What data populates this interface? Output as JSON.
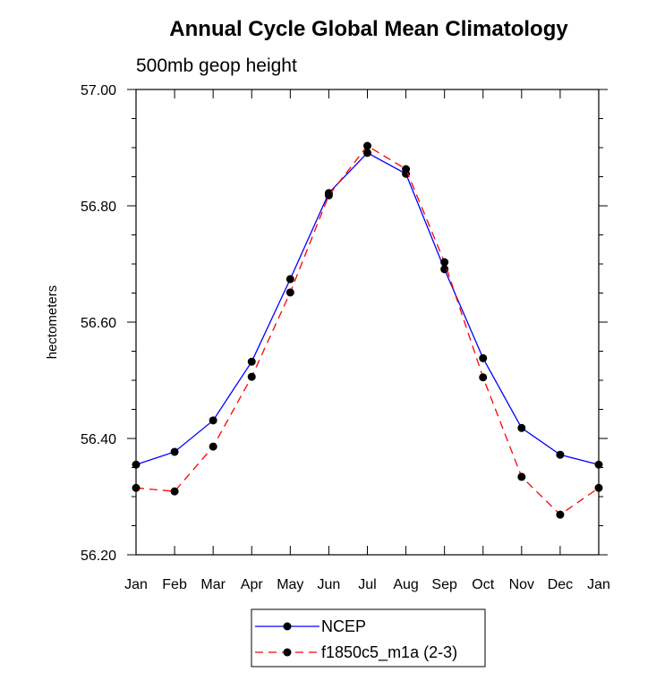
{
  "chart_data": {
    "type": "line",
    "title": "Annual Cycle Global Mean Climatology",
    "subtitle": "500mb geop height",
    "xlabel": "",
    "ylabel": "hectometers",
    "categories": [
      "Jan",
      "Feb",
      "Mar",
      "Apr",
      "May",
      "Jun",
      "Jul",
      "Aug",
      "Sep",
      "Oct",
      "Nov",
      "Dec",
      "Jan"
    ],
    "ylim": [
      56.2,
      57.0
    ],
    "yticks": [
      56.2,
      56.4,
      56.6,
      56.8,
      57.0
    ],
    "ytick_labels": [
      "56.20",
      "56.40",
      "56.60",
      "56.80",
      "57.00"
    ],
    "y_minor_step": 0.05,
    "grid": false,
    "legend_position": "bottom-center",
    "series": [
      {
        "name": "NCEP",
        "color": "#0000ff",
        "line_style": "solid",
        "marker": "filled-circle",
        "values": [
          56.355,
          56.377,
          56.431,
          56.532,
          56.674,
          56.822,
          56.891,
          56.855,
          56.691,
          56.538,
          56.418,
          56.372,
          56.355
        ]
      },
      {
        "name": "f1850c5_m1a (2-3)",
        "color": "#ff0000",
        "line_style": "dashed",
        "marker": "filled-circle",
        "values": [
          56.315,
          56.309,
          56.386,
          56.506,
          56.651,
          56.818,
          56.903,
          56.863,
          56.703,
          56.505,
          56.334,
          56.269,
          56.315
        ]
      }
    ]
  }
}
